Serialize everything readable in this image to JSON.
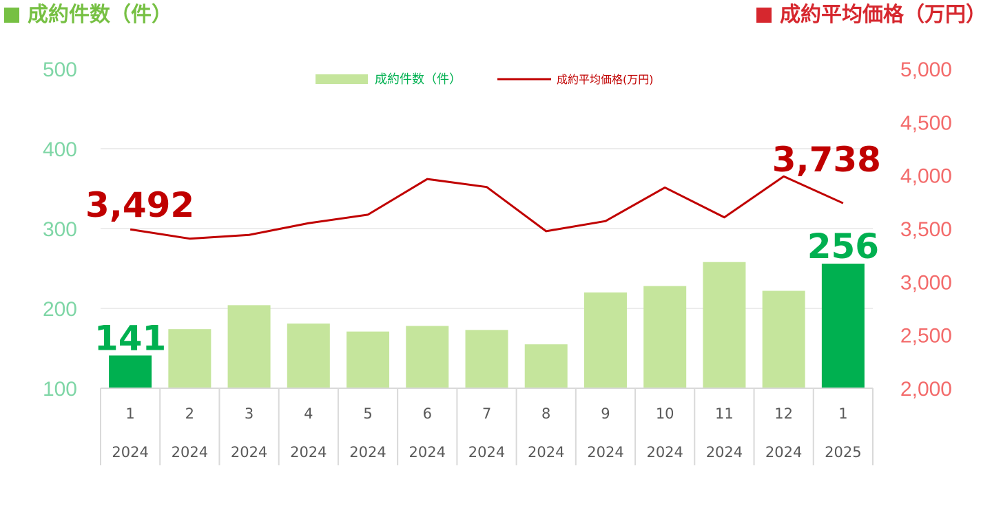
{
  "header": {
    "left_title": "成約件数（件）",
    "right_title": "成約平均価格（万円）"
  },
  "colors": {
    "bar": "#c5e59c",
    "bar_highlight": "#00b050",
    "line": "#c00000",
    "left_axis": "#7fd6a6",
    "right_axis": "#f36b6b",
    "left_title": "#76c043",
    "right_title": "#d6272e"
  },
  "chart_data": {
    "type": "bar",
    "categories": [
      {
        "month": "1",
        "year": "2024"
      },
      {
        "month": "2",
        "year": "2024"
      },
      {
        "month": "3",
        "year": "2024"
      },
      {
        "month": "4",
        "year": "2024"
      },
      {
        "month": "5",
        "year": "2024"
      },
      {
        "month": "6",
        "year": "2024"
      },
      {
        "month": "7",
        "year": "2024"
      },
      {
        "month": "8",
        "year": "2024"
      },
      {
        "month": "9",
        "year": "2024"
      },
      {
        "month": "10",
        "year": "2024"
      },
      {
        "month": "11",
        "year": "2024"
      },
      {
        "month": "12",
        "year": "2024"
      },
      {
        "month": "1",
        "year": "2025"
      }
    ],
    "series": [
      {
        "name": "成約件数（件）",
        "kind": "bar",
        "axis": "left",
        "values": [
          141,
          174,
          204,
          181,
          171,
          178,
          173,
          155,
          220,
          228,
          258,
          222,
          256
        ],
        "highlight_indices": [
          0,
          12
        ]
      },
      {
        "name": "成約平均価格(万円)",
        "kind": "line",
        "axis": "right",
        "values": [
          3492,
          3405,
          3440,
          3550,
          3630,
          3965,
          3890,
          3475,
          3570,
          3885,
          3605,
          3990,
          3738
        ]
      }
    ],
    "y_left": {
      "ticks": [
        "500",
        "400",
        "300",
        "200",
        "100"
      ],
      "ylim": [
        100,
        500
      ]
    },
    "y_right": {
      "ticks": [
        "5,000",
        "4,500",
        "4,000",
        "3,500",
        "3,000",
        "2,500",
        "2,000"
      ],
      "ylim": [
        2000,
        5000
      ]
    },
    "grid": true,
    "legend": "top-center",
    "annotations": {
      "count_first": "141",
      "count_last": "256",
      "price_first": "3,492",
      "price_last": "3,738"
    }
  }
}
